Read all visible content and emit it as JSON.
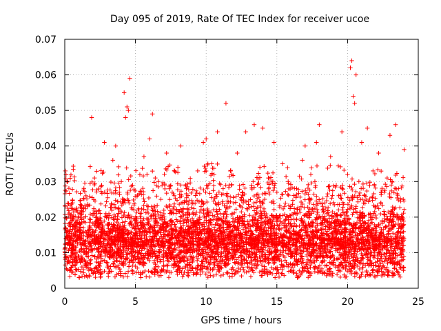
{
  "chart_data": {
    "type": "scatter",
    "title": "Day 095 of 2019, Rate Of TEC Index for receiver ucoe",
    "xlabel": "GPS time / hours",
    "ylabel": "ROTI / TECUs",
    "xlim": [
      0,
      25
    ],
    "ylim": [
      0,
      0.07
    ],
    "x_ticks": [
      0,
      5,
      10,
      15,
      20,
      25
    ],
    "x_tick_labels": [
      "0",
      "5",
      "10",
      "15",
      "20",
      "25"
    ],
    "y_ticks": [
      0,
      0.01,
      0.02,
      0.03,
      0.04,
      0.05,
      0.06,
      0.07
    ],
    "y_tick_labels": [
      "0",
      "0.01",
      "0.02",
      "0.03",
      "0.04",
      "0.05",
      "0.06",
      "0.07"
    ],
    "grid": true,
    "marker": "+",
    "marker_color": "#ff0000",
    "series": [
      {
        "name": "ROTI",
        "x": [
          0.0,
          0.04,
          0.08,
          0.1,
          0.2,
          0.3,
          0.4,
          0.6,
          0.8,
          1.0,
          1.2,
          1.5,
          1.7,
          1.9,
          2.1,
          2.4,
          2.6,
          2.8,
          3.0,
          3.2,
          3.4,
          3.6,
          3.8,
          4.0,
          4.2,
          4.3,
          4.4,
          4.5,
          4.6,
          4.8,
          5.0,
          5.2,
          5.4,
          5.6,
          5.8,
          6.0,
          6.2,
          6.4,
          6.6,
          6.8,
          7.0,
          7.2,
          7.4,
          7.6,
          7.8,
          8.0,
          8.2,
          8.4,
          8.6,
          8.8,
          9.0,
          9.2,
          9.4,
          9.6,
          9.8,
          10.0,
          10.2,
          10.4,
          10.6,
          10.8,
          11.0,
          11.2,
          11.4,
          11.6,
          11.8,
          12.0,
          12.2,
          12.4,
          12.6,
          12.8,
          13.0,
          13.2,
          13.4,
          13.6,
          13.8,
          14.0,
          14.2,
          14.4,
          14.6,
          14.8,
          15.0,
          15.2,
          15.4,
          15.6,
          15.8,
          16.0,
          16.2,
          16.4,
          16.6,
          16.8,
          17.0,
          17.2,
          17.4,
          17.6,
          17.8,
          18.0,
          18.2,
          18.4,
          18.6,
          18.8,
          19.0,
          19.2,
          19.4,
          19.6,
          19.8,
          20.0,
          20.2,
          20.3,
          20.4,
          20.5,
          20.6,
          20.8,
          21.0,
          21.2,
          21.4,
          21.6,
          21.8,
          22.0,
          22.2,
          22.4,
          22.6,
          22.8,
          23.0,
          23.2,
          23.4,
          23.6,
          23.8,
          24.0
        ],
        "y": [
          0.011,
          0.033,
          0.009,
          0.014,
          0.03,
          0.016,
          0.02,
          0.012,
          0.022,
          0.009,
          0.014,
          0.026,
          0.011,
          0.048,
          0.031,
          0.013,
          0.029,
          0.041,
          0.018,
          0.01,
          0.036,
          0.04,
          0.015,
          0.03,
          0.055,
          0.048,
          0.051,
          0.05,
          0.059,
          0.029,
          0.014,
          0.022,
          0.012,
          0.037,
          0.016,
          0.042,
          0.049,
          0.031,
          0.012,
          0.025,
          0.018,
          0.038,
          0.013,
          0.027,
          0.009,
          0.034,
          0.04,
          0.016,
          0.028,
          0.011,
          0.024,
          0.016,
          0.033,
          0.012,
          0.041,
          0.042,
          0.019,
          0.035,
          0.013,
          0.044,
          0.021,
          0.028,
          0.052,
          0.017,
          0.032,
          0.011,
          0.038,
          0.014,
          0.026,
          0.044,
          0.016,
          0.029,
          0.046,
          0.012,
          0.034,
          0.045,
          0.018,
          0.031,
          0.01,
          0.041,
          0.027,
          0.013,
          0.035,
          0.019,
          0.03,
          0.009,
          0.016,
          0.028,
          0.013,
          0.036,
          0.04,
          0.02,
          0.032,
          0.012,
          0.041,
          0.046,
          0.018,
          0.024,
          0.011,
          0.037,
          0.02,
          0.029,
          0.013,
          0.044,
          0.016,
          0.032,
          0.062,
          0.064,
          0.054,
          0.052,
          0.06,
          0.03,
          0.041,
          0.016,
          0.045,
          0.021,
          0.033,
          0.012,
          0.038,
          0.027,
          0.014,
          0.031,
          0.043,
          0.017,
          0.046,
          0.028,
          0.011,
          0.039
        ]
      }
    ]
  }
}
